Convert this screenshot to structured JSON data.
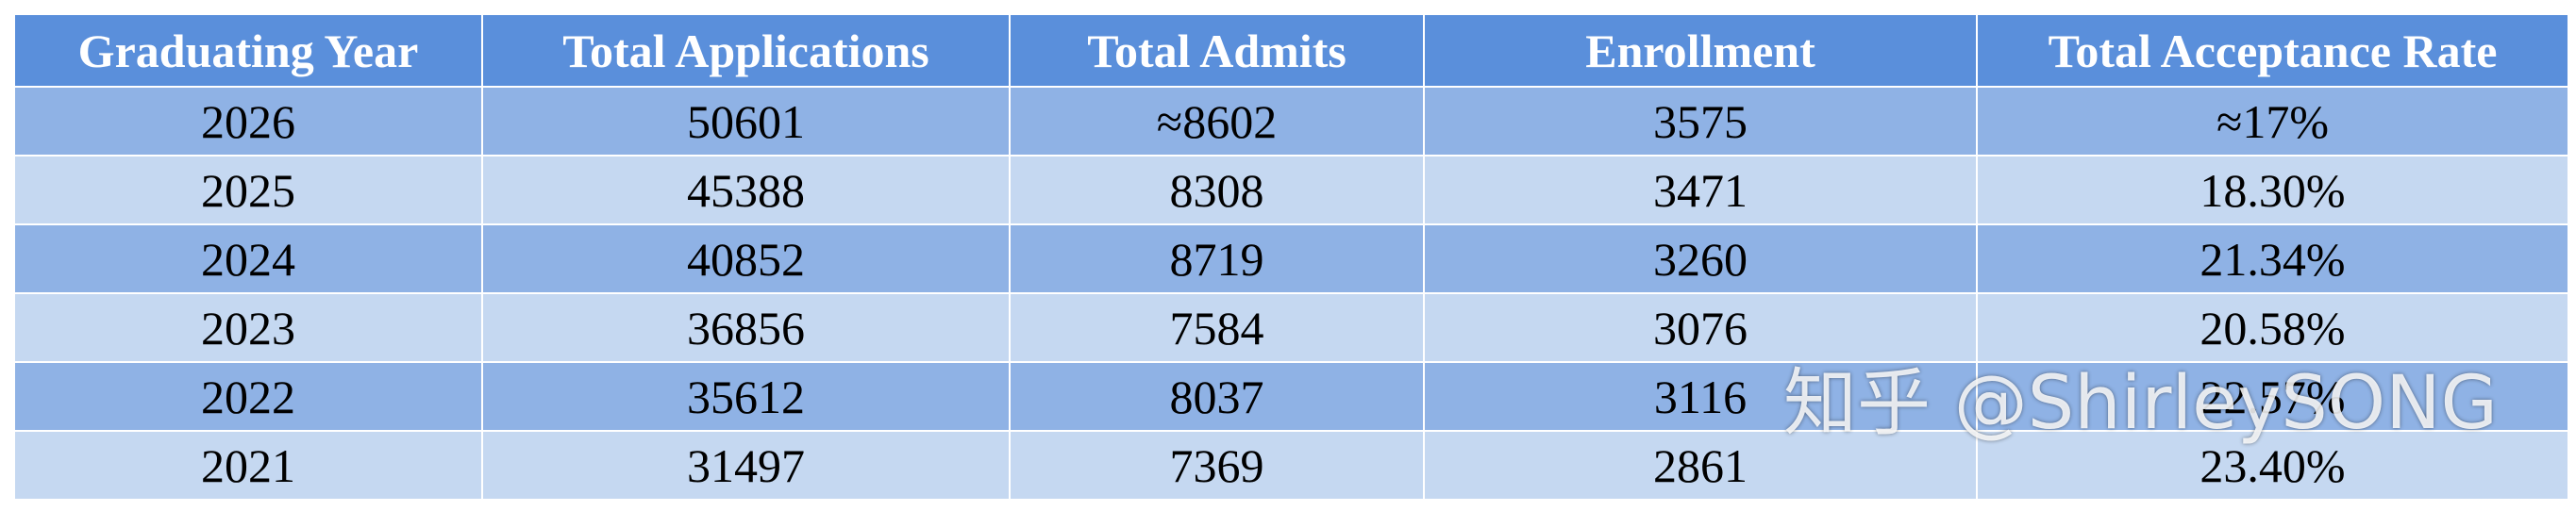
{
  "table": {
    "header": [
      "Graduating Year",
      "Total Applications",
      "Total Admits",
      "Enrollment",
      "Total Acceptance Rate"
    ],
    "rows": [
      [
        "2026",
        "50601",
        "≈8602",
        "3575",
        "≈17%"
      ],
      [
        "2025",
        "45388",
        "8308",
        "3471",
        "18.30%"
      ],
      [
        "2024",
        "40852",
        "8719",
        "3260",
        "21.34%"
      ],
      [
        "2023",
        "36856",
        "7584",
        "3076",
        "20.58%"
      ],
      [
        "2022",
        "35612",
        "8037",
        "3116",
        "22.57%"
      ],
      [
        "2021",
        "31497",
        "7369",
        "2861",
        "23.40%"
      ]
    ]
  },
  "watermark": "知乎 @ShirleySONG"
}
